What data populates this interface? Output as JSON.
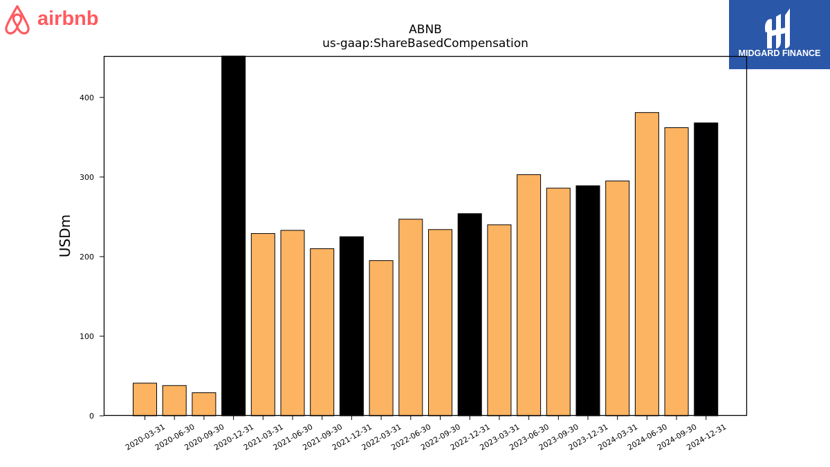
{
  "brand": {
    "left_logo_text": "airbnb",
    "left_logo_color": "#ff5a5f",
    "right_logo_text": "MIDGARD FINANCE",
    "right_logo_bg": "#2b57a9"
  },
  "chart_data": {
    "type": "bar",
    "title": "ABNB",
    "subtitle": "us-gaap:ShareBasedCompensation",
    "xlabel": "",
    "ylabel": "USDm",
    "ylim": [
      0,
      452
    ],
    "yticks": [
      0,
      100,
      200,
      300,
      400
    ],
    "grid": false,
    "categories": [
      "2020-03-31",
      "2020-06-30",
      "2020-09-30",
      "2020-12-31",
      "2021-03-31",
      "2021-06-30",
      "2021-09-30",
      "2021-12-31",
      "2022-03-31",
      "2022-06-30",
      "2022-09-30",
      "2022-12-31",
      "2023-03-31",
      "2023-06-30",
      "2023-09-30",
      "2023-12-31",
      "2024-03-31",
      "2024-06-30",
      "2024-09-30",
      "2024-12-31"
    ],
    "values": [
      41,
      38,
      29,
      452,
      229,
      233,
      210,
      225,
      195,
      247,
      234,
      254,
      240,
      303,
      286,
      289,
      295,
      381,
      362,
      368
    ],
    "colors": {
      "quarter": "#fdb462",
      "year_end": "#000000"
    },
    "year_end_flags": [
      false,
      false,
      false,
      true,
      false,
      false,
      false,
      true,
      false,
      false,
      false,
      true,
      false,
      false,
      false,
      true,
      false,
      false,
      false,
      true
    ]
  }
}
